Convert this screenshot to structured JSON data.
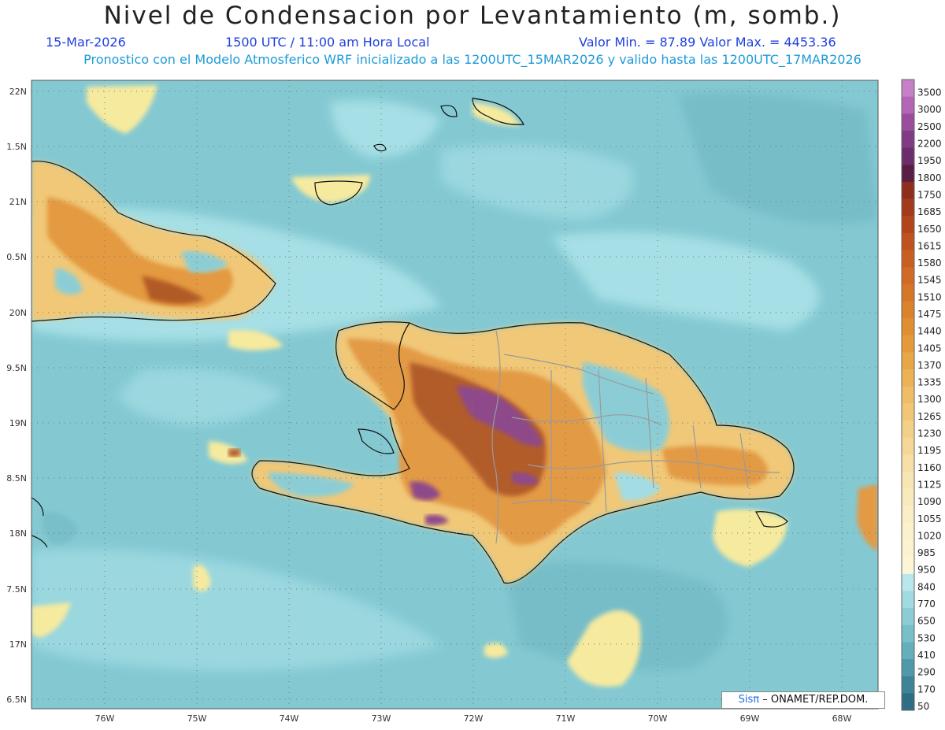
{
  "header": {
    "title": "Nivel de Condensacion por Levantamiento (m, somb.)",
    "date": "15-Mar-2026",
    "time": "1500 UTC / 11:00 am Hora Local",
    "minmax": "Valor Min. = 87.89  Valor Max. = 4453.36",
    "model_line": "Pronostico con el Modelo Atmosferico WRF inicializado a las 1200UTC_15MAR2026 y valido hasta las  1200UTC_17MAR2026"
  },
  "axes": {
    "lat_labels": [
      "22N",
      "1.5N",
      "21N",
      "0.5N",
      "20N",
      "9.5N",
      "19N",
      "8.5N",
      "18N",
      "7.5N",
      "17N",
      "6.5N"
    ],
    "lon_labels": [
      "76W",
      "75W",
      "74W",
      "73W",
      "72W",
      "71W",
      "70W",
      "69W",
      "68W"
    ]
  },
  "colorbar": {
    "levels": [
      "3500",
      "3000",
      "2500",
      "2200",
      "1950",
      "1800",
      "1750",
      "1685",
      "1650",
      "1615",
      "1580",
      "1545",
      "1510",
      "1475",
      "1440",
      "1405",
      "1370",
      "1335",
      "1300",
      "1265",
      "1230",
      "1195",
      "1160",
      "1125",
      "1090",
      "1055",
      "1020",
      "985",
      "950",
      "840",
      "770",
      "650",
      "530",
      "410",
      "290",
      "170",
      "50"
    ],
    "colors": [
      "#c77fc7",
      "#b366b5",
      "#9a4d9e",
      "#813b84",
      "#6b2e6c",
      "#5a1e45",
      "#8e2f1e",
      "#a33a1c",
      "#b3451c",
      "#bf521f",
      "#c95e22",
      "#d06a25",
      "#d67628",
      "#dc822c",
      "#e08e32",
      "#e49a3b",
      "#e8a647",
      "#ecb256",
      "#efbd66",
      "#f1c777",
      "#f3d088",
      "#f5d898",
      "#f7dfa7",
      "#f8e5b4",
      "#f9eabe",
      "#faeec6",
      "#fbf1cc",
      "#fbf3d0",
      "#fcf5d6",
      "#b9e8ec",
      "#a1dbe1",
      "#8ccdd5",
      "#78bfc9",
      "#64afba",
      "#5199aa",
      "#3f8399",
      "#2f6d86"
    ]
  },
  "legend_colors": {
    "sea": "#7fc6d0",
    "low": "#a3dde3",
    "yellow": "#f6e9a2",
    "orange": "#e39a45",
    "brown": "#b25c2a",
    "purple": "#8e4a8a"
  },
  "credit": {
    "logo": "Sisπ",
    "text": "– ONAMET/REP.DOM."
  }
}
